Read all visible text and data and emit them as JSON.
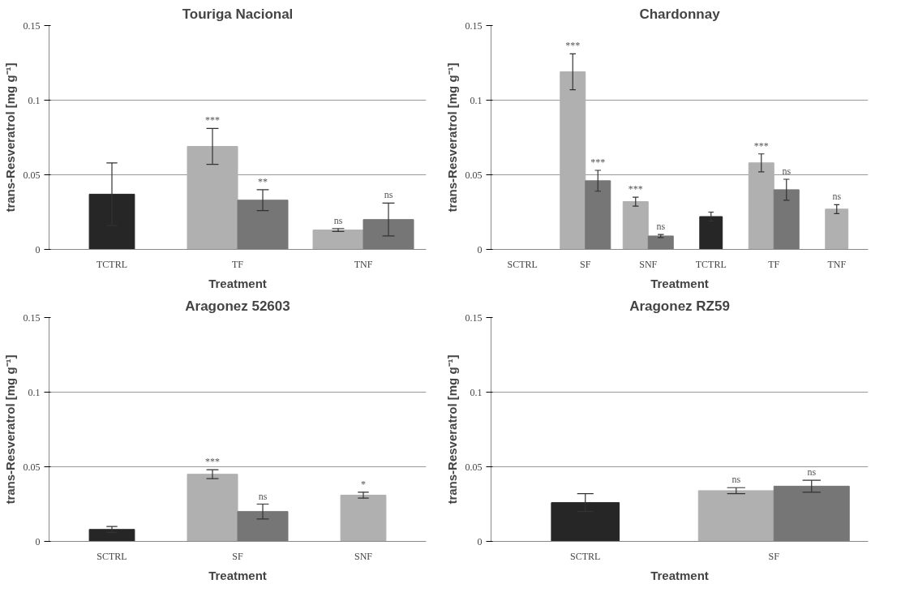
{
  "chart_data": [
    {
      "type": "bar",
      "title": "Touriga Nacional",
      "xlabel": "Treatment",
      "ylabel": "trans-Resveratrol [mg g⁻¹]",
      "categories": [
        "TCTRL",
        "TF",
        "TNF"
      ],
      "ylim": [
        0,
        0.15
      ],
      "yticks": [
        0,
        0.05,
        0.1,
        0.15
      ],
      "grid": "y",
      "series": [
        {
          "color": "#262626",
          "values": [
            0.037,
            null,
            null
          ],
          "errors": [
            0.021,
            null,
            null
          ]
        },
        {
          "color": "#b0b0b0",
          "values": [
            null,
            0.069,
            0.013
          ],
          "errors": [
            null,
            0.012,
            0.001
          ],
          "value_labels": [
            null,
            "***",
            "ns"
          ]
        },
        {
          "color": "#767676",
          "values": [
            null,
            0.033,
            0.02
          ],
          "errors": [
            null,
            0.007,
            0.011
          ],
          "value_labels": [
            null,
            "**",
            "ns"
          ]
        }
      ]
    },
    {
      "type": "bar",
      "title": "Chardonnay",
      "xlabel": "Treatment",
      "ylabel": "trans-Resveratrol [mg g⁻¹]",
      "categories": [
        "SCTRL",
        "SF",
        "SNF",
        "TCTRL",
        "TF",
        "TNF"
      ],
      "ylim": [
        0,
        0.15
      ],
      "yticks": [
        0,
        0.05,
        0.1,
        0.15
      ],
      "grid": "y",
      "series": [
        {
          "color": "#262626",
          "values": [
            null,
            null,
            null,
            0.022,
            null,
            null
          ],
          "errors": [
            null,
            null,
            null,
            0.003,
            null,
            null
          ]
        },
        {
          "color": "#b0b0b0",
          "values": [
            null,
            0.119,
            0.032,
            null,
            0.058,
            0.027
          ],
          "errors": [
            null,
            0.012,
            0.003,
            null,
            0.006,
            0.003
          ],
          "value_labels": [
            null,
            "***",
            "***",
            null,
            "***",
            "ns"
          ]
        },
        {
          "color": "#767676",
          "values": [
            null,
            0.046,
            0.009,
            null,
            0.04,
            null
          ],
          "errors": [
            null,
            0.007,
            0.001,
            null,
            0.007,
            null
          ],
          "value_labels": [
            null,
            "***",
            "ns",
            null,
            "ns",
            null
          ]
        }
      ]
    },
    {
      "type": "bar",
      "title": "Aragonez 52603",
      "xlabel": "Treatment",
      "ylabel": "trans-Resveratrol [mg g⁻¹]",
      "categories": [
        "SCTRL",
        "SF",
        "SNF"
      ],
      "ylim": [
        0,
        0.15
      ],
      "yticks": [
        0,
        0.05,
        0.1,
        0.15
      ],
      "grid": "y",
      "series": [
        {
          "color": "#262626",
          "values": [
            0.008,
            null,
            null
          ],
          "errors": [
            0.002,
            null,
            null
          ]
        },
        {
          "color": "#b0b0b0",
          "values": [
            null,
            0.045,
            0.031
          ],
          "errors": [
            null,
            0.003,
            0.002
          ],
          "value_labels": [
            null,
            "***",
            "*"
          ]
        },
        {
          "color": "#767676",
          "values": [
            null,
            0.02,
            null
          ],
          "errors": [
            null,
            0.005,
            null
          ],
          "value_labels": [
            null,
            "ns",
            null
          ]
        }
      ]
    },
    {
      "type": "bar",
      "title": "Aragonez RZ59",
      "xlabel": "Treatment",
      "ylabel": "trans-Resveratrol [mg g⁻¹]",
      "categories": [
        "SCTRL",
        "SF"
      ],
      "ylim": [
        0,
        0.15
      ],
      "yticks": [
        0,
        0.05,
        0.1,
        0.15
      ],
      "grid": "y",
      "series": [
        {
          "color": "#262626",
          "values": [
            0.026,
            null
          ],
          "errors": [
            0.006,
            null
          ]
        },
        {
          "color": "#b0b0b0",
          "values": [
            null,
            0.034
          ],
          "errors": [
            null,
            0.002
          ],
          "value_labels": [
            null,
            "ns"
          ]
        },
        {
          "color": "#767676",
          "values": [
            null,
            0.037
          ],
          "errors": [
            null,
            0.004
          ],
          "value_labels": [
            null,
            "ns"
          ]
        }
      ]
    }
  ]
}
